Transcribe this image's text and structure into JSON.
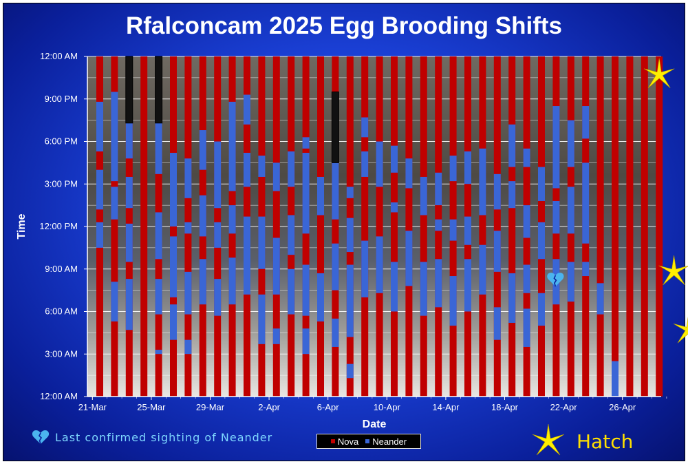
{
  "colors": {
    "nova": "#c00000",
    "neander": "#3a66d6",
    "annotation_text": "#7fd8ff",
    "hatch_text": "#ffe000",
    "star": "#ffee00"
  },
  "annotations": {
    "last_sighting": "Last confirmed sighting of Neander",
    "hatch": "Hatch",
    "last_sighting_icon": "broken-heart-icon",
    "hatch_icon": "starburst-icon"
  },
  "chart_data": {
    "type": "bar",
    "title": "Rfalconcam 2025 Egg Brooding Shifts",
    "xlabel": "Date",
    "ylabel": "Time",
    "x_tick_labels": [
      "21-Mar",
      "25-Mar",
      "29-Mar",
      "2-Apr",
      "6-Apr",
      "10-Apr",
      "14-Apr",
      "18-Apr",
      "22-Apr",
      "26-Apr"
    ],
    "y_tick_labels": [
      "12:00 AM",
      "3:00 AM",
      "6:00 AM",
      "9:00 AM",
      "12:00 PM",
      "3:00 PM",
      "6:00 PM",
      "9:00 PM",
      "12:00 AM"
    ],
    "y_unit": "hours",
    "ylim": [
      0,
      24
    ],
    "grid": true,
    "legend_position": "bottom-center",
    "categories": [
      "21-Mar",
      "22-Mar",
      "23-Mar",
      "24-Mar",
      "25-Mar",
      "26-Mar",
      "27-Mar",
      "28-Mar",
      "29-Mar",
      "30-Mar",
      "31-Mar",
      "1-Apr",
      "2-Apr",
      "3-Apr",
      "4-Apr",
      "5-Apr",
      "6-Apr",
      "7-Apr",
      "8-Apr",
      "9-Apr",
      "10-Apr",
      "11-Apr",
      "12-Apr",
      "13-Apr",
      "14-Apr",
      "15-Apr",
      "16-Apr",
      "17-Apr",
      "18-Apr",
      "19-Apr",
      "20-Apr",
      "21-Apr",
      "22-Apr",
      "23-Apr",
      "24-Apr",
      "25-Apr",
      "26-Apr",
      "27-Apr",
      "28-Apr"
    ],
    "series": [
      {
        "name": "Nova",
        "color": "#c00000"
      },
      {
        "name": "Neander",
        "color": "#3a66d6"
      }
    ],
    "neander_shifts": [
      [
        [
          10.5,
          12.3
        ],
        [
          13.2,
          16
        ],
        [
          17.3,
          20.8
        ]
      ],
      [
        [
          5.3,
          8.1
        ],
        [
          12.5,
          14.8
        ],
        [
          15.2,
          21.5
        ]
      ],
      [
        [
          4.7,
          8.3
        ],
        [
          9.5,
          12.2
        ],
        [
          13.3,
          15.5
        ],
        [
          16.8,
          20.3
        ]
      ],
      [],
      [
        [
          3,
          3.3
        ],
        [
          5.8,
          8.3
        ],
        [
          9.7,
          13
        ],
        [
          15.7,
          19.5
        ]
      ],
      [
        [
          4,
          6.5
        ],
        [
          7,
          11.3
        ],
        [
          12,
          17.2
        ]
      ],
      [
        [
          3,
          4
        ],
        [
          5.8,
          8.8
        ],
        [
          11.5,
          12.3
        ],
        [
          14,
          16.8
        ]
      ],
      [
        [
          6.5,
          9.7
        ],
        [
          11.3,
          14.2
        ],
        [
          16,
          18.8
        ]
      ],
      [
        [
          5.7,
          8.3
        ],
        [
          10.5,
          12.3
        ],
        [
          13.3,
          18
        ]
      ],
      [
        [
          6.5,
          9.8
        ],
        [
          11.5,
          13.5
        ],
        [
          14.5,
          20.8
        ]
      ],
      [
        [
          7.2,
          12.7
        ],
        [
          14.8,
          17.2
        ],
        [
          19.2,
          21.3
        ]
      ],
      [
        [
          3.7,
          7.2
        ],
        [
          9,
          12.7
        ],
        [
          15.5,
          17
        ]
      ],
      [
        [
          3.7,
          4.8
        ],
        [
          7.2,
          11.2
        ],
        [
          14.5,
          16.5
        ]
      ],
      [
        [
          5.8,
          9
        ],
        [
          10,
          12.8
        ],
        [
          14.8,
          17.3
        ]
      ],
      [
        [
          3,
          4.8
        ],
        [
          5.7,
          9.3
        ],
        [
          11.5,
          17.2
        ],
        [
          17.5,
          18.3
        ]
      ],
      [
        [
          5.3,
          8.7
        ],
        [
          12.8,
          15.5
        ]
      ],
      [
        [
          3.5,
          5.5
        ],
        [
          7.5,
          10.8
        ],
        [
          12.5,
          18
        ]
      ],
      [
        [
          1.3,
          2.3
        ],
        [
          4.2,
          9.3
        ],
        [
          10.2,
          12.6
        ],
        [
          14,
          14.8
        ]
      ],
      [
        [
          7,
          11
        ],
        [
          15.5,
          17.3
        ],
        [
          18.3,
          19.7
        ]
      ],
      [
        [
          7.3,
          11.3
        ],
        [
          14.8,
          18
        ]
      ],
      [
        [
          6,
          9.5
        ],
        [
          13,
          13.7
        ],
        [
          15.8,
          17.7
        ]
      ],
      [
        [
          7.8,
          11.7
        ],
        [
          14.7,
          16.8
        ]
      ],
      [
        [
          5.7,
          9.5
        ],
        [
          12.8,
          15.5
        ]
      ],
      [
        [
          6.3,
          9.7
        ],
        [
          11.7,
          12.5
        ],
        [
          13.5,
          15.8
        ]
      ],
      [
        [
          5,
          8.5
        ],
        [
          11,
          12.5
        ],
        [
          15.2,
          17
        ]
      ],
      [
        [
          6,
          9.7
        ],
        [
          10.7,
          12.7
        ],
        [
          15,
          17.3
        ]
      ],
      [
        [
          7.2,
          10.7
        ],
        [
          12.8,
          17.5
        ]
      ],
      [
        [
          4,
          6.3
        ],
        [
          8.8,
          11.7
        ],
        [
          13.2,
          15.7
        ]
      ],
      [
        [
          5.2,
          8.7
        ],
        [
          13.3,
          15.2
        ],
        [
          16.2,
          19.2
        ]
      ],
      [
        [
          3.5,
          6.2
        ],
        [
          7.3,
          9.3
        ],
        [
          11.2,
          13.5
        ],
        [
          16.2,
          17.5
        ]
      ],
      [
        [
          5,
          7.3
        ],
        [
          9.7,
          12.3
        ],
        [
          13.8,
          16.2
        ]
      ],
      [
        [
          6.5,
          9.7
        ],
        [
          11.5,
          13.8
        ],
        [
          14.7,
          20.5
        ]
      ],
      [
        [
          6.7,
          9.5
        ],
        [
          11.5,
          14.8
        ],
        [
          16.2,
          19.5
        ]
      ],
      [
        [
          8.5,
          9.5
        ],
        [
          10.8,
          16.5
        ],
        [
          18.2,
          20.5
        ]
      ],
      [
        [
          5.8,
          8
        ]
      ],
      [
        [
          0,
          2.5
        ]
      ],
      [],
      [],
      []
    ],
    "cam_off_hours": [
      [],
      [],
      [
        [
          19.3,
          24
        ]
      ],
      [],
      [
        [
          19.3,
          24
        ]
      ],
      [],
      [],
      [],
      [],
      [],
      [],
      [],
      [],
      [],
      [],
      [],
      [
        [
          16.5,
          21.5
        ]
      ]
    ],
    "special_markers": [
      {
        "type": "last-sighting",
        "date": "21-Apr",
        "time_hours": 8.3
      },
      {
        "type": "hatch",
        "date": "28-Apr",
        "time_hours": 22.7
      },
      {
        "type": "hatch",
        "date": "29-Apr",
        "time_hours": 8.8
      },
      {
        "type": "hatch",
        "date": "30-Apr",
        "time_hours": 4.7
      }
    ]
  }
}
